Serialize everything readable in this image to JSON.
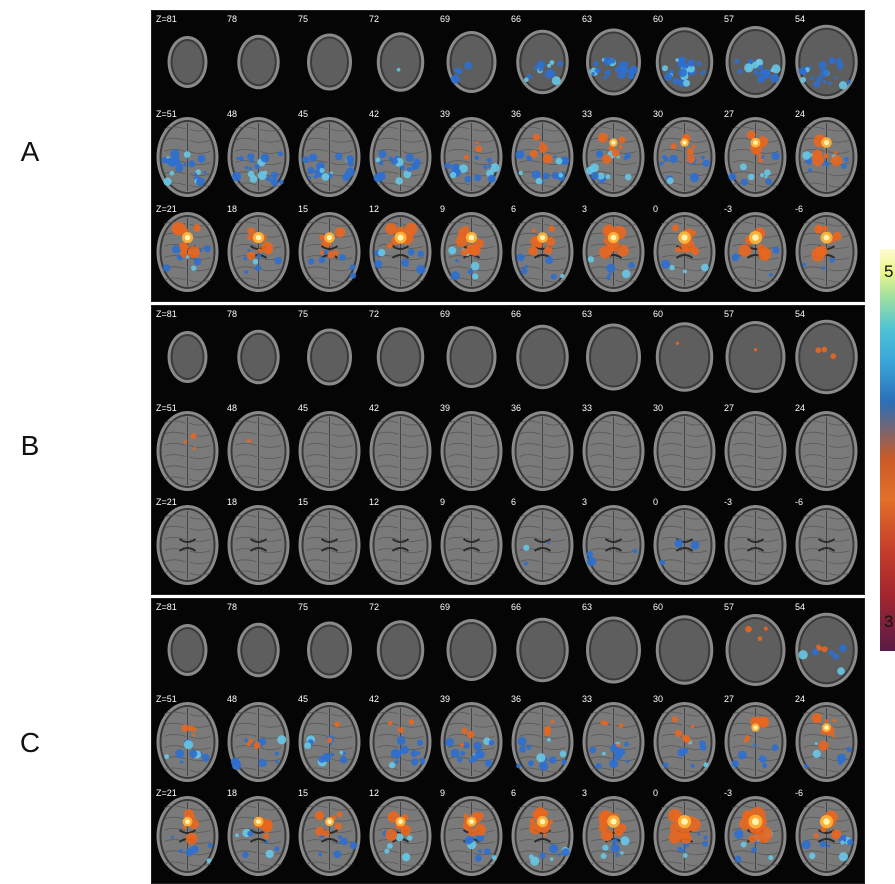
{
  "panels": [
    {
      "letter": "A",
      "rows": [
        {
          "labels": [
            "Z=81",
            "78",
            "75",
            "72",
            "69",
            "66",
            "63",
            "60",
            "57",
            "54"
          ]
        },
        {
          "labels": [
            "Z=51",
            "48",
            "45",
            "42",
            "39",
            "36",
            "33",
            "30",
            "27",
            "24"
          ]
        },
        {
          "labels": [
            "Z=21",
            "18",
            "15",
            "12",
            "9",
            "6",
            "3",
            "0",
            "-3",
            "-6"
          ]
        }
      ]
    },
    {
      "letter": "B",
      "rows": [
        {
          "labels": [
            "Z=81",
            "78",
            "75",
            "72",
            "69",
            "66",
            "63",
            "60",
            "57",
            "54"
          ]
        },
        {
          "labels": [
            "Z=51",
            "48",
            "45",
            "42",
            "39",
            "36",
            "33",
            "30",
            "27",
            "24"
          ]
        },
        {
          "labels": [
            "Z=21",
            "18",
            "15",
            "12",
            "9",
            "6",
            "3",
            "0",
            "-3",
            "-6"
          ]
        }
      ]
    },
    {
      "letter": "C",
      "rows": [
        {
          "labels": [
            "Z=81",
            "78",
            "75",
            "72",
            "69",
            "66",
            "63",
            "60",
            "57",
            "54"
          ]
        },
        {
          "labels": [
            "Z=51",
            "48",
            "45",
            "42",
            "39",
            "36",
            "33",
            "30",
            "27",
            "24"
          ]
        },
        {
          "labels": [
            "Z=21",
            "18",
            "15",
            "12",
            "9",
            "6",
            "3",
            "0",
            "-3",
            "-6"
          ]
        }
      ]
    }
  ],
  "colorbar": {
    "max_label": "5",
    "min_label": "3"
  },
  "activation": {
    "A": [
      [
        0,
        0,
        0,
        0.05,
        0.2,
        0.7,
        0.85,
        0.95,
        0.95,
        0.95
      ],
      [
        0.95,
        0.95,
        0.9,
        0.8,
        0.75,
        0.7,
        0.6,
        0.55,
        0.45,
        0.4
      ],
      [
        0.35,
        0.3,
        0.35,
        0.3,
        0.35,
        0.3,
        0.25,
        0.2,
        0.2,
        0.2
      ]
    ],
    "A_warm": [
      [
        0,
        0,
        0,
        0,
        0,
        0,
        0,
        0,
        0,
        0
      ],
      [
        0,
        0,
        0,
        0,
        0.3,
        0.5,
        0.6,
        0.6,
        0.7,
        0.75
      ],
      [
        0.8,
        0.8,
        0.75,
        0.85,
        0.8,
        0.75,
        0.8,
        0.9,
        0.95,
        0.85
      ]
    ],
    "B": [
      [
        0,
        0,
        0,
        0,
        0,
        0,
        0,
        0,
        0,
        0
      ],
      [
        0,
        0,
        0,
        0,
        0,
        0,
        0,
        0,
        0,
        0
      ],
      [
        0,
        0,
        0,
        0,
        0,
        0.15,
        0.15,
        0.15,
        0,
        0
      ]
    ],
    "B_warm": [
      [
        0,
        0,
        0,
        0,
        0,
        0,
        0,
        0.1,
        0.05,
        0.25
      ],
      [
        0.3,
        0.1,
        0,
        0,
        0,
        0,
        0,
        0,
        0,
        0
      ],
      [
        0,
        0,
        0,
        0,
        0,
        0,
        0,
        0,
        0,
        0
      ]
    ],
    "C": [
      [
        0,
        0,
        0,
        0,
        0,
        0,
        0,
        0,
        0,
        0.3
      ],
      [
        0.4,
        0.5,
        0.55,
        0.6,
        0.65,
        0.55,
        0.45,
        0.35,
        0.3,
        0.3
      ],
      [
        0.25,
        0.3,
        0.3,
        0.3,
        0.35,
        0.35,
        0.35,
        0.3,
        0.4,
        0.45
      ]
    ],
    "C_warm": [
      [
        0,
        0,
        0,
        0,
        0,
        0,
        0,
        0,
        0.3,
        0.3
      ],
      [
        0.35,
        0.3,
        0.3,
        0.3,
        0.3,
        0.3,
        0.35,
        0.45,
        0.6,
        0.65
      ],
      [
        0.7,
        0.7,
        0.65,
        0.7,
        0.7,
        0.8,
        0.9,
        0.95,
        1,
        0.95
      ]
    ]
  }
}
